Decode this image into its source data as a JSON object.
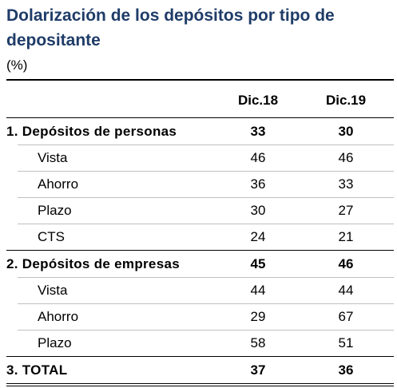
{
  "title": "Dolarización de los depósitos por tipo de depositante",
  "unit": "(%)",
  "columns": [
    "Dic.18",
    "Dic.19"
  ],
  "rows": [
    {
      "label": "1.  Depósitos de personas",
      "v1": "33",
      "v2": "30",
      "bold": true
    },
    {
      "label": "Vista",
      "v1": "46",
      "v2": "46",
      "bold": false
    },
    {
      "label": "Ahorro",
      "v1": "36",
      "v2": "33",
      "bold": false
    },
    {
      "label": "Plazo",
      "v1": "30",
      "v2": "27",
      "bold": false
    },
    {
      "label": "CTS",
      "v1": "24",
      "v2": "21",
      "bold": false
    },
    {
      "label": "2.  Depósitos de empresas",
      "v1": "45",
      "v2": "46",
      "bold": true
    },
    {
      "label": "Vista",
      "v1": "44",
      "v2": "44",
      "bold": false
    },
    {
      "label": "Ahorro",
      "v1": "29",
      "v2": "67",
      "bold": false
    },
    {
      "label": "Plazo",
      "v1": "58",
      "v2": "51",
      "bold": false
    },
    {
      "label": "3.  TOTAL",
      "v1": "37",
      "v2": "36",
      "bold": true
    }
  ],
  "colors": {
    "title": "#1f3c68",
    "text": "#000000",
    "rule": "#000000"
  }
}
